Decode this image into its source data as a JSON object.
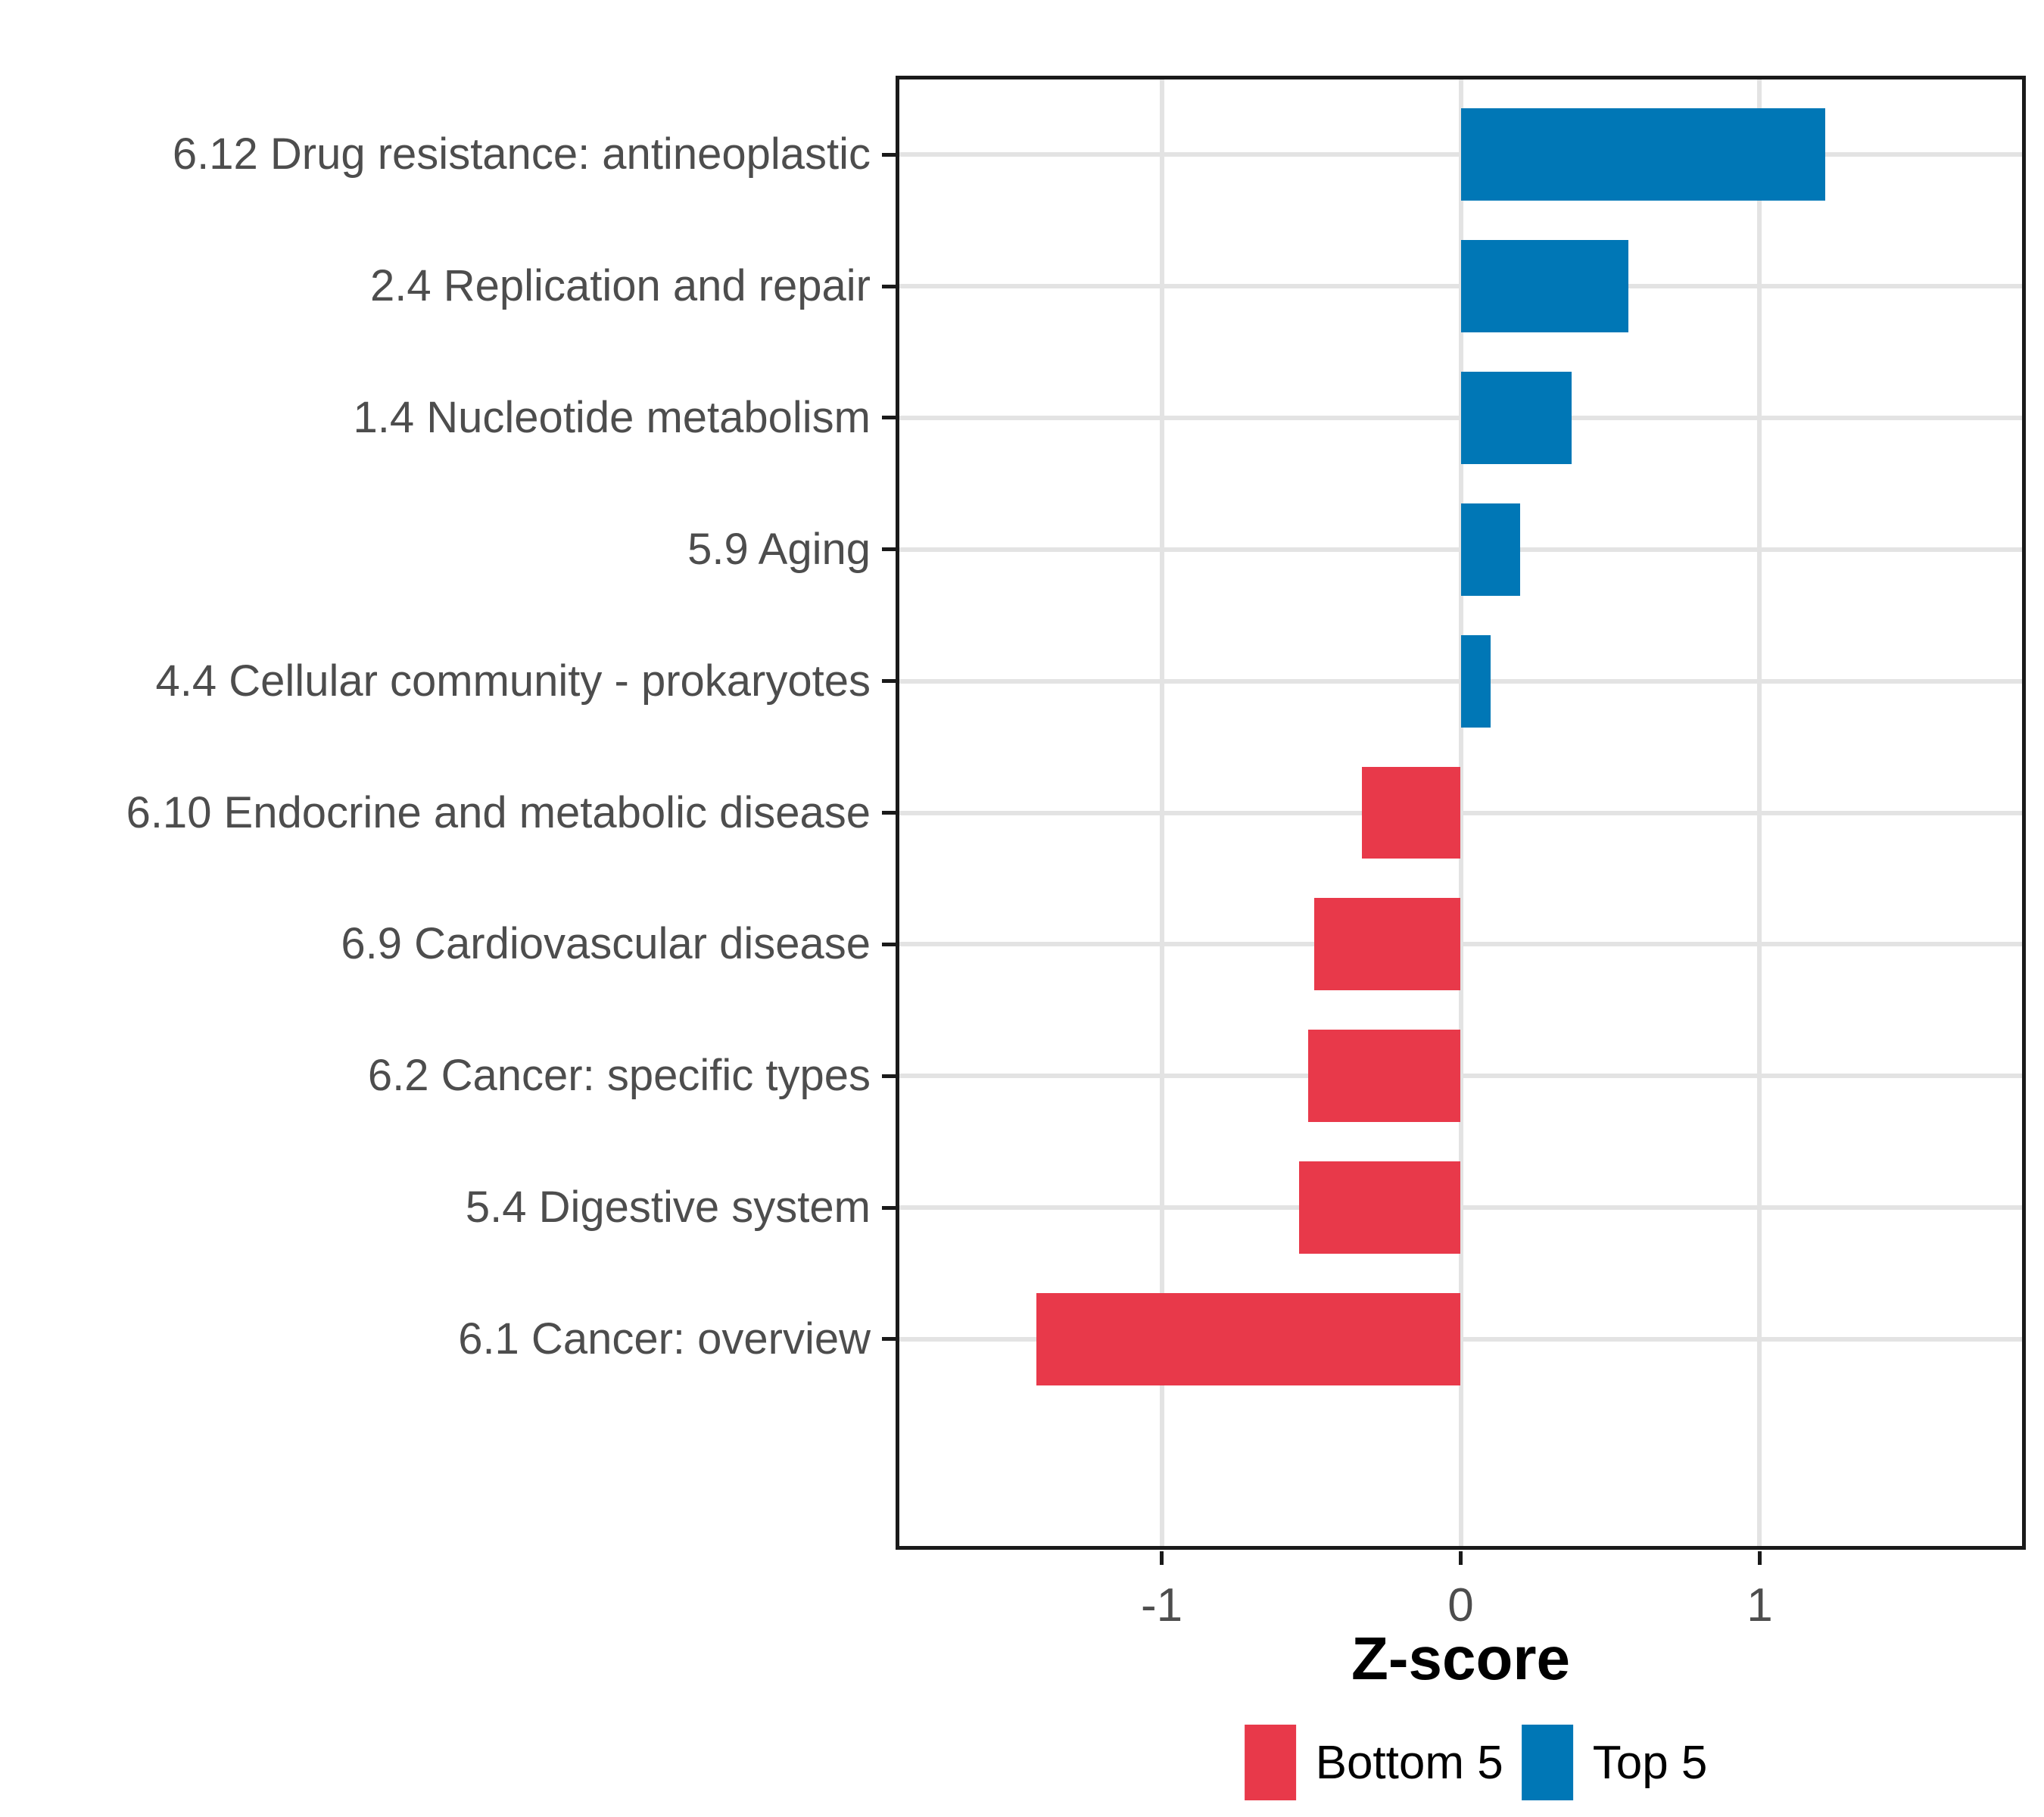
{
  "chart_data": {
    "type": "bar",
    "orientation": "horizontal",
    "title": "",
    "xlabel": "Z-score",
    "ylabel": "",
    "categories": [
      "6.12 Drug resistance: antineoplastic",
      "2.4 Replication and repair",
      "1.4 Nucleotide metabolism",
      "5.9 Aging",
      "4.4 Cellular community - prokaryotes",
      "6.10 Endocrine and metabolic disease",
      "6.9 Cardiovascular disease",
      "6.2 Cancer: specific types",
      "5.4 Digestive system",
      "6.1 Cancer: overview"
    ],
    "values": [
      1.22,
      0.56,
      0.37,
      0.2,
      0.1,
      -0.33,
      -0.49,
      -0.51,
      -0.54,
      -1.42
    ],
    "groups": [
      "Top 5",
      "Top 5",
      "Top 5",
      "Top 5",
      "Top 5",
      "Bottom 5",
      "Bottom 5",
      "Bottom 5",
      "Bottom 5",
      "Bottom 5"
    ],
    "colors": {
      "Top 5": "#0077B6",
      "Bottom 5": "#E8394A"
    },
    "x_ticks": [
      -1,
      0,
      1
    ],
    "x_tick_labels": [
      "-1",
      "0",
      "1"
    ],
    "xlim": [
      -1.89,
      1.89
    ],
    "bar_rel_width": 0.7,
    "grid": "major only, vertical at x ticks and horizontal at each category",
    "legend": {
      "position": "bottom",
      "items": [
        {
          "label": "Bottom 5",
          "color": "#E8394A"
        },
        {
          "label": "Top 5",
          "color": "#0077B6"
        }
      ]
    },
    "styles": {
      "axis_text_color": "#4d4d4d",
      "axis_title_color": "#000000",
      "panel_border_color": "#1a1a1a",
      "gridline_color": "#e3e3e3",
      "background": "#ffffff"
    }
  }
}
